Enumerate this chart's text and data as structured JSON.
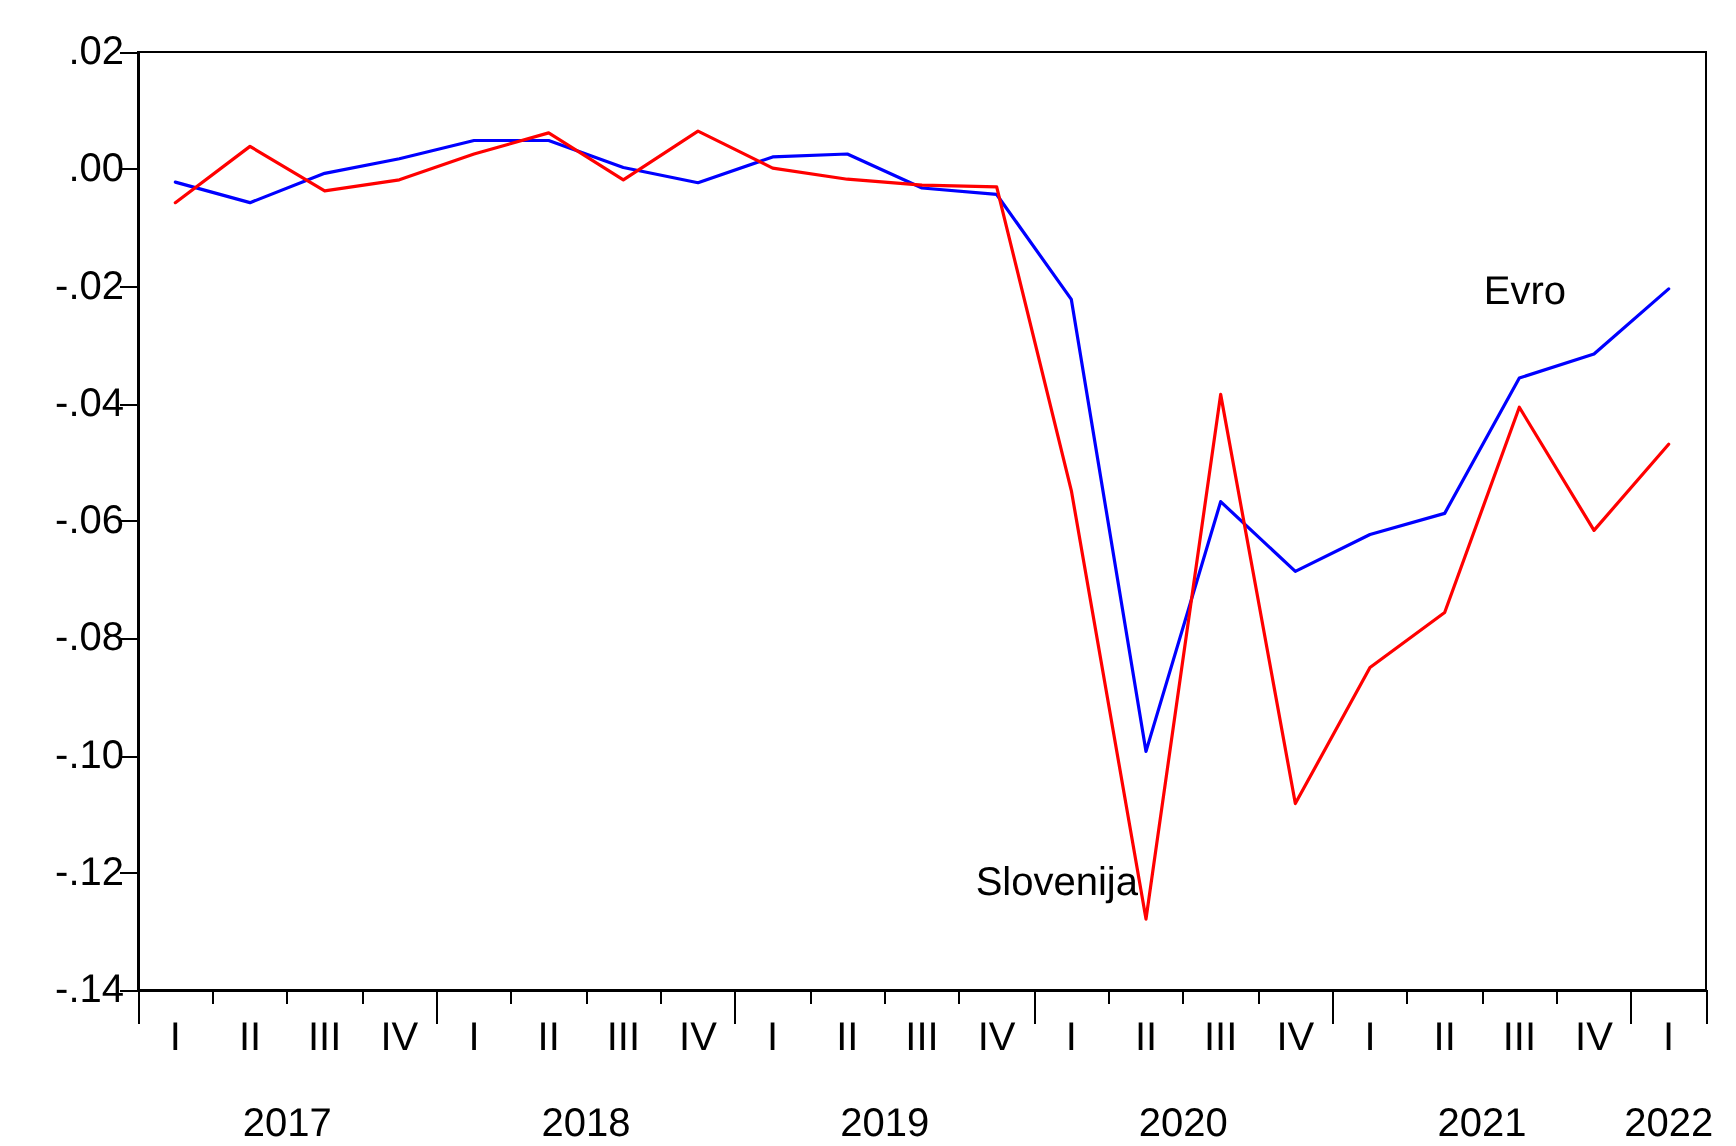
{
  "chart_data": {
    "type": "line",
    "categories": [
      "I",
      "II",
      "III",
      "IV",
      "I",
      "II",
      "III",
      "IV",
      "I",
      "II",
      "III",
      "IV",
      "I",
      "II",
      "III",
      "IV",
      "I",
      "II",
      "III",
      "IV",
      "I"
    ],
    "series": [
      {
        "name": "Evro",
        "color": "#0000ff",
        "values": [
          -0.0022,
          -0.0057,
          -0.0007,
          0.0018,
          0.0049,
          0.0049,
          0.0003,
          -0.0023,
          0.0021,
          0.0026,
          -0.0032,
          -0.0043,
          -0.0222,
          -0.0993,
          -0.0567,
          -0.0686,
          -0.0623,
          -0.0587,
          -0.0356,
          -0.0315,
          -0.0204
        ]
      },
      {
        "name": "Slovenija",
        "color": "#ff0000",
        "values": [
          -0.0057,
          0.0039,
          -0.0037,
          -0.0018,
          0.0026,
          0.0062,
          -0.0018,
          0.0065,
          0.0002,
          -0.0017,
          -0.0027,
          -0.003,
          -0.0548,
          -0.1279,
          -0.0384,
          -0.1082,
          -0.085,
          -0.0756,
          -0.0406,
          -0.0616,
          -0.0469
        ]
      }
    ],
    "ylim": [
      -0.14,
      0.02
    ],
    "yticks": [
      {
        "value": -0.14,
        "label": "-.14"
      },
      {
        "value": -0.12,
        "label": "-.12"
      },
      {
        "value": -0.1,
        "label": "-.10"
      },
      {
        "value": -0.08,
        "label": "-.08"
      },
      {
        "value": -0.06,
        "label": "-.06"
      },
      {
        "value": -0.04,
        "label": "-.04"
      },
      {
        "value": -0.02,
        "label": "-.02"
      },
      {
        "value": 0,
        "label": ".00"
      },
      {
        "value": 0.02,
        "label": ".02"
      }
    ],
    "annotations": [
      "2017",
      "2018",
      "2019",
      "2020",
      "2021",
      "2022"
    ],
    "grid": false,
    "legend": false,
    "marker": "none",
    "line_style": "solid"
  }
}
